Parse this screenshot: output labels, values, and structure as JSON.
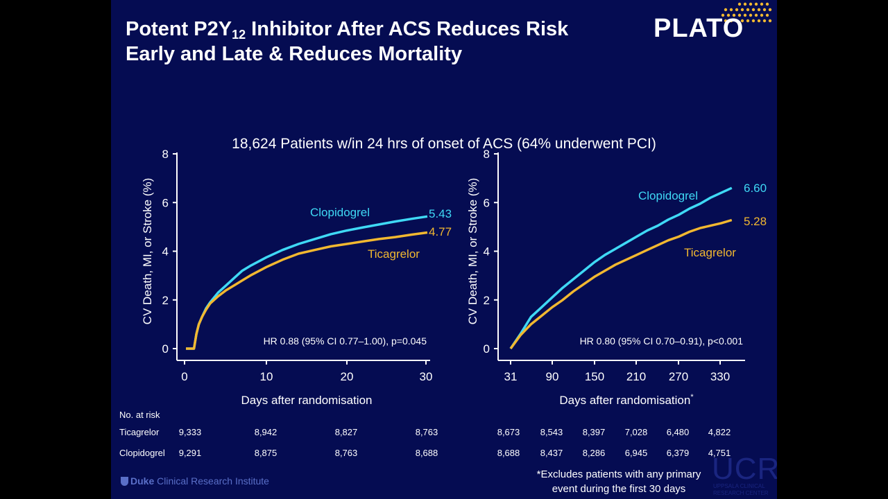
{
  "slide": {
    "title_part1": "Potent P2Y",
    "title_sub": "12",
    "title_part2": " Inhibitor After ACS Reduces Risk",
    "title_line2": "Early and Late & Reduces Mortality",
    "logo": "PLATO",
    "subtitle": "18,624 Patients w/in 24 hrs of onset of ACS (64% underwent PCI)",
    "footnote_line1": "*Excludes patients with any primary",
    "footnote_line2": "event during the first 30 days",
    "institution": "Duke Clinical Research Institute",
    "institution_bold": "Duke",
    "institution_rest": " Clinical Research Institute",
    "ucr_logo": "UCR",
    "ucr_sub": "UPPSALA CLINICAL RESEARCH CENTER"
  },
  "colors": {
    "background": "#050c52",
    "clopidogrel": "#3fd9f5",
    "ticagrelor": "#f2b830",
    "text": "#ffffff"
  },
  "chart_data": [
    {
      "type": "line",
      "xlabel": "Days after randomisation",
      "ylabel": "CV Death, MI, or Stroke (%)",
      "xlim": [
        0,
        30
      ],
      "ylim": [
        0,
        8
      ],
      "xticks": [
        0,
        10,
        20,
        30
      ],
      "yticks": [
        0,
        2,
        4,
        6,
        8
      ],
      "annotation": "HR 0.88 (95% CI 0.77–1.00), p=0.045",
      "series": [
        {
          "name": "Clopidogrel",
          "end_label": "5.43",
          "x": [
            0,
            1,
            1.3,
            1.6,
            2,
            2.5,
            3,
            4,
            5,
            6,
            7,
            8,
            10,
            12,
            14,
            16,
            18,
            20,
            22,
            24,
            26,
            28,
            30
          ],
          "y": [
            0,
            0,
            0.6,
            1.0,
            1.3,
            1.65,
            1.9,
            2.3,
            2.6,
            2.9,
            3.2,
            3.4,
            3.75,
            4.05,
            4.3,
            4.5,
            4.7,
            4.85,
            4.98,
            5.1,
            5.22,
            5.33,
            5.43
          ]
        },
        {
          "name": "Ticagrelor",
          "end_label": "4.77",
          "x": [
            0,
            1,
            1.3,
            1.6,
            2,
            2.5,
            3,
            4,
            5,
            6,
            7,
            8,
            10,
            12,
            14,
            16,
            18,
            20,
            22,
            24,
            26,
            28,
            30
          ],
          "y": [
            0,
            0,
            0.6,
            1.0,
            1.3,
            1.6,
            1.85,
            2.15,
            2.4,
            2.6,
            2.8,
            3.0,
            3.35,
            3.65,
            3.9,
            4.05,
            4.2,
            4.3,
            4.4,
            4.5,
            4.58,
            4.68,
            4.77
          ]
        }
      ]
    },
    {
      "type": "line",
      "xlabel": "Days after randomisation*",
      "ylabel": "CV Death, MI, or Stroke (%)",
      "xlim": [
        31,
        360
      ],
      "ylim": [
        0,
        8
      ],
      "xticks": [
        31,
        90,
        150,
        210,
        270,
        330
      ],
      "yticks": [
        0,
        2,
        4,
        6,
        8
      ],
      "annotation": "HR 0.80 (95% CI 0.70–0.91), p<0.001",
      "series": [
        {
          "name": "Clopidogrel",
          "end_label": "6.60",
          "x": [
            31,
            45,
            60,
            75,
            90,
            105,
            120,
            135,
            150,
            165,
            180,
            195,
            210,
            225,
            240,
            255,
            270,
            285,
            300,
            315,
            330,
            345
          ],
          "y": [
            0,
            0.6,
            1.3,
            1.7,
            2.1,
            2.5,
            2.85,
            3.2,
            3.55,
            3.85,
            4.1,
            4.35,
            4.6,
            4.85,
            5.05,
            5.3,
            5.5,
            5.75,
            5.95,
            6.2,
            6.4,
            6.6
          ]
        },
        {
          "name": "Ticagrelor",
          "end_label": "5.28",
          "x": [
            31,
            45,
            60,
            75,
            90,
            105,
            120,
            135,
            150,
            165,
            180,
            195,
            210,
            225,
            240,
            255,
            270,
            285,
            300,
            315,
            330,
            345
          ],
          "y": [
            0,
            0.55,
            1.0,
            1.35,
            1.7,
            2.0,
            2.35,
            2.65,
            2.95,
            3.2,
            3.45,
            3.65,
            3.85,
            4.05,
            4.25,
            4.45,
            4.6,
            4.8,
            4.95,
            5.05,
            5.15,
            5.28
          ]
        }
      ]
    }
  ],
  "risk_table": {
    "header": "No. at risk",
    "rows": [
      {
        "label": "Ticagrelor",
        "values": [
          "9,333",
          "8,942",
          "8,827",
          "8,763",
          "8,673",
          "8,543",
          "8,397",
          "7,028",
          "6,480",
          "4,822"
        ]
      },
      {
        "label": "Clopidogrel",
        "values": [
          "9,291",
          "8,875",
          "8,763",
          "8,688",
          "8,688",
          "8,437",
          "8,286",
          "6,945",
          "6,379",
          "4,751"
        ]
      }
    ]
  }
}
